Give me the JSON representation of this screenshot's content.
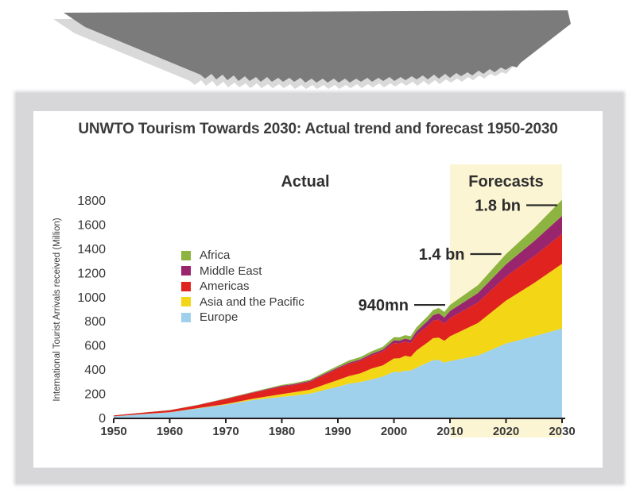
{
  "banner": {
    "color": "#7b7b7b",
    "shadow_color": "#d9d9da"
  },
  "card": {
    "title": "UNWTO Tourism Towards 2030: Actual trend and forecast 1950-2030",
    "frame_color": "#d7d7d9"
  },
  "chart_data": {
    "type": "area",
    "stacked": true,
    "title": "UNWTO Tourism Towards 2030: Actual trend and forecast 1950-2030",
    "xlabel": "",
    "ylabel": "International Tourist Arrivals received (Million)",
    "xlim": [
      1950,
      2030
    ],
    "ylim": [
      0,
      1800
    ],
    "xticks": [
      1950,
      1960,
      1970,
      1980,
      1990,
      2000,
      2010,
      2020,
      2030
    ],
    "yticks": [
      0,
      200,
      400,
      600,
      800,
      1000,
      1200,
      1400,
      1600,
      1800
    ],
    "grid": false,
    "legend_position": "upper-left-inside",
    "x": [
      1950,
      1955,
      1960,
      1965,
      1970,
      1975,
      1980,
      1982,
      1985,
      1988,
      1990,
      1992,
      1994,
      1996,
      1998,
      2000,
      2001,
      2002,
      2003,
      2004,
      2005,
      2006,
      2007,
      2008,
      2009,
      2010,
      2015,
      2020,
      2025,
      2030
    ],
    "series": [
      {
        "name": "Europe",
        "color": "#9fd0ec",
        "values": [
          17,
          35,
          50,
          82,
          113,
          154,
          178,
          187,
          204,
          240,
          262,
          287,
          300,
          322,
          346,
          386,
          383,
          394,
          397,
          418,
          441,
          462,
          482,
          485,
          461,
          475,
          520,
          620,
          680,
          744
        ]
      },
      {
        "name": "Asia and the Pacific",
        "color": "#f3d616",
        "values": [
          0.2,
          0.5,
          0.9,
          3,
          6,
          10,
          23,
          28,
          33,
          46,
          56,
          64,
          73,
          90,
          92,
          110,
          115,
          124,
          113,
          143,
          154,
          166,
          182,
          184,
          181,
          204,
          270,
          355,
          440,
          535
        ]
      },
      {
        "name": "Americas",
        "color": "#e0231e",
        "values": [
          7.5,
          11,
          17,
          25,
          42,
          50,
          62,
          60,
          65,
          82,
          93,
          100,
          103,
          109,
          116,
          128,
          122,
          117,
          113,
          126,
          133,
          136,
          144,
          148,
          141,
          150,
          170,
          199,
          222,
          248
        ]
      },
      {
        "name": "Middle East",
        "color": "#99256f",
        "values": [
          0.2,
          0.4,
          0.6,
          1.2,
          1.9,
          3.5,
          7.1,
          7.5,
          8,
          9,
          9.6,
          11,
          12,
          14,
          15,
          22.4,
          23,
          25,
          27,
          32,
          36,
          41,
          47,
          53,
          52,
          60,
          78,
          101,
          124,
          149
        ]
      },
      {
        "name": "Africa",
        "color": "#8db440",
        "values": [
          0.5,
          0.7,
          0.8,
          1.4,
          2.4,
          4.7,
          7.2,
          7.8,
          9.7,
          13,
          15,
          18,
          19,
          20,
          23,
          26.2,
          28,
          29,
          30,
          33,
          35,
          39,
          42,
          44,
          46,
          50,
          65,
          85,
          108,
          134
        ]
      }
    ],
    "sections": {
      "actual": "Actual",
      "forecasts": "Forecasts",
      "forecast_start": 2010,
      "band_color": "#fcf5d3"
    },
    "annotations": [
      {
        "label": "940mn",
        "year": 2010
      },
      {
        "label": "1.4 bn",
        "year": 2020
      },
      {
        "label": "1.8 bn",
        "year": 2030
      }
    ]
  }
}
